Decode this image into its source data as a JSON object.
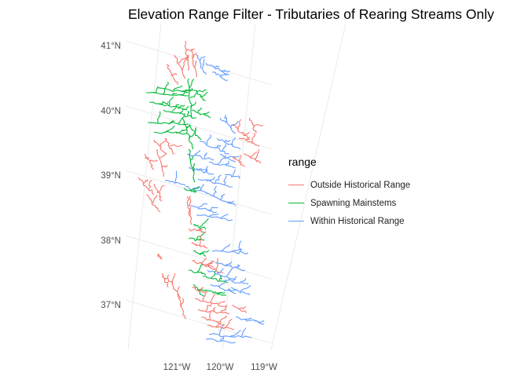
{
  "title": "Elevation Range Filter - Tributaries of Rearing Streams Only",
  "legend": {
    "title": "range",
    "items": [
      {
        "label": "Outside Historical Range",
        "color": "#F8766D"
      },
      {
        "label": "Spawning Mainstems",
        "color": "#00BA38"
      },
      {
        "label": "Within Historical Range",
        "color": "#619CFF"
      }
    ]
  },
  "axes": {
    "lat_labels": [
      "41°N",
      "40°N",
      "39°N",
      "38°N",
      "37°N"
    ],
    "lon_labels": [
      "121°W",
      "120°W",
      "119°W"
    ],
    "lat_values": [
      41,
      40,
      39,
      38,
      37
    ],
    "lon_values": [
      -121,
      -120,
      -119
    ],
    "grid": true
  }
}
